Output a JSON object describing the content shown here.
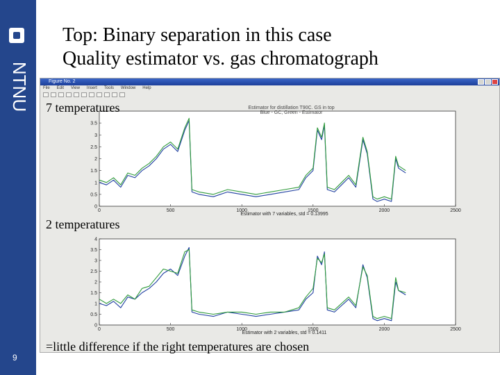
{
  "slide": {
    "title_line1": "Top: Binary separation in this case",
    "title_line2": "Quality estimator vs. gas chromatograph",
    "page_number": "9",
    "footer": "=little difference if the right temperatures are chosen",
    "logo_text": "NTNU",
    "sidebar_color": "#24468c"
  },
  "window": {
    "title": "Figure No. 2",
    "menu": [
      "File",
      "Edit",
      "View",
      "Insert",
      "Tools",
      "Window",
      "Help"
    ]
  },
  "labels": {
    "top": "7 temperatures",
    "bottom": "2 temperatures"
  },
  "chart_data": [
    {
      "type": "line",
      "title": "Estimator for distillation T90C. GS in top",
      "subtitle": "Blue - GC, Green - Estimator",
      "xlabel": "Estimator with 7 variables, std = 0.13995",
      "xlim": [
        0,
        2500
      ],
      "ylim": [
        0,
        4
      ],
      "xticks": [
        0,
        500,
        1000,
        1500,
        2000,
        2500
      ],
      "yticks": [
        0,
        0.5,
        1,
        1.5,
        2,
        2.5,
        3,
        3.5
      ],
      "colors": {
        "gc": "#1f3fa0",
        "estimator": "#2e9a3a"
      },
      "series": [
        {
          "name": "GC",
          "x": [
            0,
            50,
            100,
            150,
            200,
            250,
            300,
            350,
            400,
            450,
            500,
            550,
            600,
            630,
            650,
            700,
            800,
            900,
            1000,
            1100,
            1200,
            1300,
            1400,
            1450,
            1500,
            1530,
            1560,
            1580,
            1600,
            1650,
            1700,
            1750,
            1800,
            1850,
            1880,
            1920,
            1950,
            2000,
            2050,
            2080,
            2100,
            2150
          ],
          "y": [
            1.0,
            0.9,
            1.1,
            0.8,
            1.3,
            1.2,
            1.5,
            1.7,
            2.0,
            2.4,
            2.6,
            2.3,
            3.2,
            3.6,
            0.6,
            0.5,
            0.4,
            0.6,
            0.5,
            0.4,
            0.5,
            0.6,
            0.7,
            1.2,
            1.5,
            3.2,
            2.8,
            3.4,
            0.7,
            0.6,
            0.9,
            1.2,
            0.8,
            2.8,
            2.2,
            0.3,
            0.2,
            0.3,
            0.2,
            2.0,
            1.6,
            1.4
          ]
        },
        {
          "name": "Estimator",
          "x": [
            0,
            50,
            100,
            150,
            200,
            250,
            300,
            350,
            400,
            450,
            500,
            550,
            600,
            630,
            650,
            700,
            800,
            900,
            1000,
            1100,
            1200,
            1300,
            1400,
            1450,
            1500,
            1530,
            1560,
            1580,
            1600,
            1650,
            1700,
            1750,
            1800,
            1850,
            1880,
            1920,
            1950,
            2000,
            2050,
            2080,
            2100,
            2150
          ],
          "y": [
            1.1,
            1.0,
            1.2,
            0.9,
            1.4,
            1.3,
            1.6,
            1.8,
            2.1,
            2.5,
            2.7,
            2.4,
            3.3,
            3.7,
            0.7,
            0.6,
            0.5,
            0.7,
            0.6,
            0.5,
            0.6,
            0.7,
            0.8,
            1.3,
            1.6,
            3.3,
            2.9,
            3.5,
            0.8,
            0.7,
            1.0,
            1.3,
            0.9,
            2.9,
            2.3,
            0.4,
            0.3,
            0.4,
            0.3,
            2.1,
            1.7,
            1.5
          ]
        }
      ]
    },
    {
      "type": "line",
      "title": "",
      "xlabel": "Estimator with 2 variables, std = 0.1411",
      "xlim": [
        0,
        2500
      ],
      "ylim": [
        0,
        4
      ],
      "xticks": [
        0,
        500,
        1000,
        1500,
        2000,
        2500
      ],
      "yticks": [
        0,
        0.5,
        1,
        1.5,
        2,
        2.5,
        3,
        3.5,
        4
      ],
      "colors": {
        "gc": "#1f3fa0",
        "estimator": "#2e9a3a"
      },
      "series": [
        {
          "name": "GC",
          "x": [
            0,
            50,
            100,
            150,
            200,
            250,
            300,
            350,
            400,
            450,
            500,
            550,
            600,
            630,
            650,
            700,
            800,
            900,
            1000,
            1100,
            1200,
            1300,
            1400,
            1450,
            1500,
            1530,
            1560,
            1580,
            1600,
            1650,
            1700,
            1750,
            1800,
            1850,
            1880,
            1920,
            1950,
            2000,
            2050,
            2080,
            2100,
            2150
          ],
          "y": [
            1.0,
            0.9,
            1.1,
            0.8,
            1.3,
            1.2,
            1.5,
            1.7,
            2.0,
            2.4,
            2.6,
            2.3,
            3.2,
            3.6,
            0.6,
            0.5,
            0.4,
            0.6,
            0.5,
            0.4,
            0.5,
            0.6,
            0.7,
            1.2,
            1.5,
            3.2,
            2.8,
            3.4,
            0.7,
            0.6,
            0.9,
            1.2,
            0.8,
            2.8,
            2.2,
            0.3,
            0.2,
            0.3,
            0.2,
            2.0,
            1.6,
            1.4
          ]
        },
        {
          "name": "Estimator",
          "x": [
            0,
            50,
            100,
            150,
            200,
            250,
            300,
            350,
            400,
            450,
            500,
            550,
            600,
            630,
            650,
            700,
            800,
            900,
            1000,
            1100,
            1200,
            1300,
            1400,
            1450,
            1500,
            1530,
            1560,
            1580,
            1600,
            1650,
            1700,
            1750,
            1800,
            1850,
            1880,
            1920,
            1950,
            2000,
            2050,
            2080,
            2100,
            2150
          ],
          "y": [
            1.2,
            1.0,
            1.2,
            1.0,
            1.4,
            1.2,
            1.7,
            1.8,
            2.2,
            2.6,
            2.5,
            2.4,
            3.4,
            3.5,
            0.7,
            0.6,
            0.5,
            0.6,
            0.6,
            0.5,
            0.6,
            0.6,
            0.8,
            1.3,
            1.7,
            3.1,
            2.9,
            3.3,
            0.8,
            0.7,
            1.0,
            1.3,
            0.9,
            2.7,
            2.3,
            0.4,
            0.3,
            0.4,
            0.3,
            2.2,
            1.6,
            1.5
          ]
        }
      ]
    }
  ]
}
